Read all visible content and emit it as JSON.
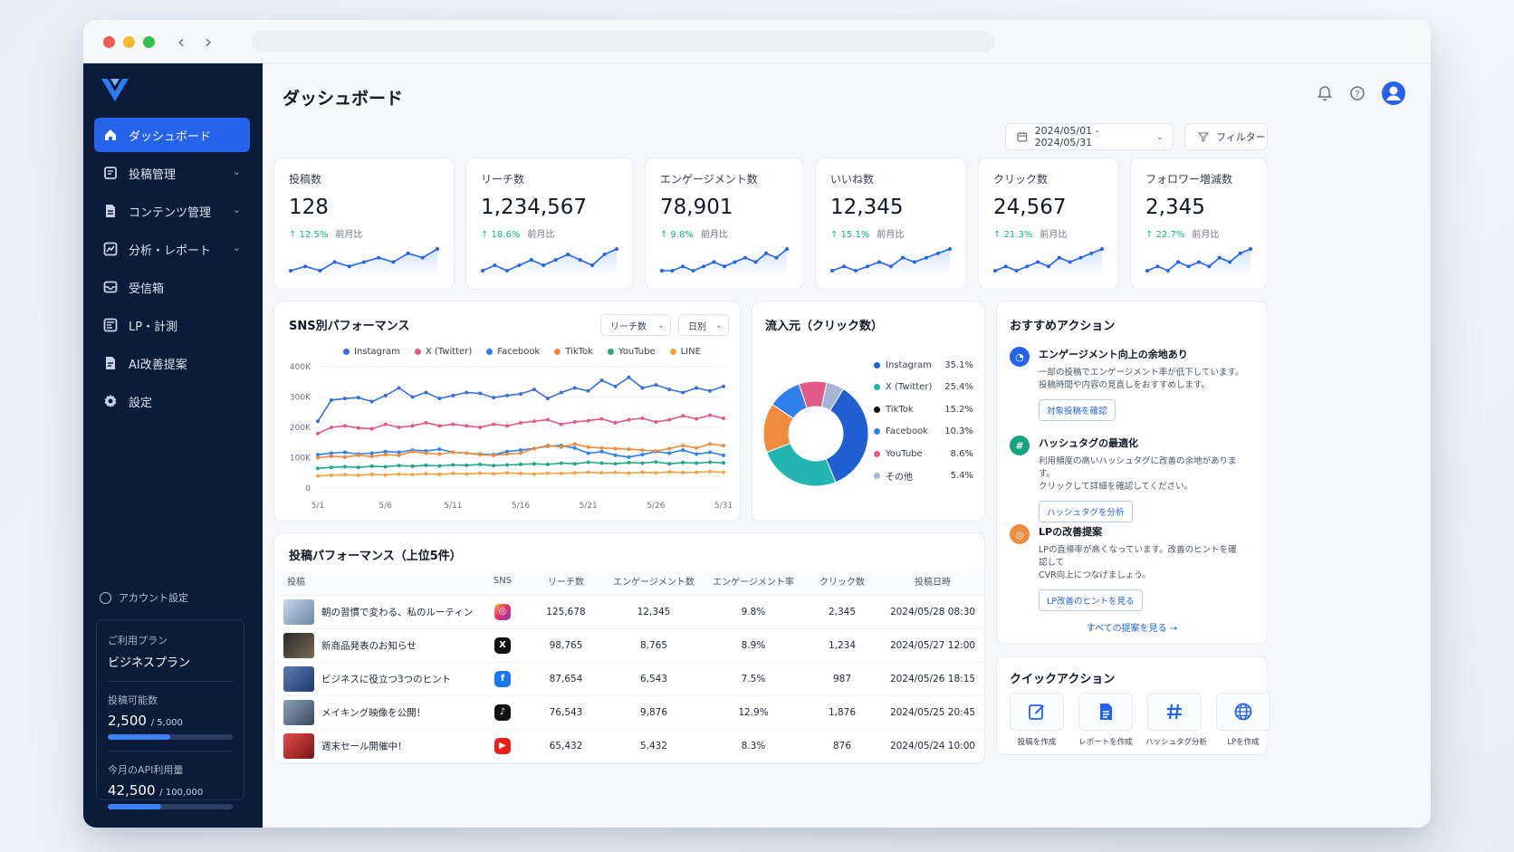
{
  "page": {
    "title": "ダッシュボード"
  },
  "sidebar": {
    "items": [
      {
        "label": "ダッシュボード"
      },
      {
        "label": "投稿管理"
      },
      {
        "label": "コンテンツ管理"
      },
      {
        "label": "分析・レポート"
      },
      {
        "label": "受信箱"
      },
      {
        "label": "LP・計測"
      },
      {
        "label": "AI改善提案"
      },
      {
        "label": "設定"
      }
    ],
    "account_label": "アカウント設定",
    "plan": {
      "plan_label": "ご利用プラン",
      "plan_name": "ビジネスプラン",
      "posts_label": "投稿可能数",
      "posts_used": "2,500",
      "posts_total": "/ 5,000",
      "posts_fraction": 0.5,
      "api_label": "今月のAPI利用量",
      "api_used": "42,500",
      "api_total": "/ 100,000",
      "api_fraction": 0.425
    }
  },
  "header": {
    "date_range": "2024/05/01 - 2024/05/31",
    "filter_label": "フィルター"
  },
  "kpis": [
    {
      "label": "投稿数",
      "value": "128",
      "delta": "↑ 12.5%",
      "compare": "前月比",
      "spark": [
        3,
        4,
        3,
        5,
        4,
        5,
        6,
        5,
        7,
        6,
        8
      ]
    },
    {
      "label": "リーチ数",
      "value": "1,234,567",
      "delta": "↑ 18.6%",
      "compare": "前月比",
      "spark": [
        3,
        4,
        3,
        4,
        5,
        4,
        5,
        6,
        5,
        4,
        6,
        7
      ]
    },
    {
      "label": "エンゲージメント数",
      "value": "78,901",
      "delta": "↑ 9.8%",
      "compare": "前月比",
      "spark": [
        3,
        3,
        4,
        3,
        4,
        5,
        4,
        5,
        6,
        5,
        7,
        6,
        8
      ]
    },
    {
      "label": "いいね数",
      "value": "12,345",
      "delta": "↑ 15.1%",
      "compare": "前月比",
      "spark": [
        3,
        4,
        3,
        4,
        5,
        4,
        6,
        5,
        6,
        7,
        8
      ]
    },
    {
      "label": "クリック数",
      "value": "24,567",
      "delta": "↑ 21.3%",
      "compare": "前月比",
      "spark": [
        3,
        4,
        3,
        4,
        5,
        4,
        6,
        5,
        6,
        7,
        8
      ]
    },
    {
      "label": "フォロワー増減数",
      "value": "2,345",
      "delta": "↑ 22.7%",
      "compare": "前月比",
      "spark": [
        3,
        4,
        3,
        5,
        4,
        5,
        4,
        6,
        5,
        7,
        8
      ]
    }
  ],
  "sns": {
    "title": "SNS別パフォーマンス",
    "metric_select": "リーチ数",
    "period_select": "日別",
    "chart_data": {
      "type": "line",
      "x": [
        "5/1",
        "5/2",
        "5/3",
        "5/4",
        "5/5",
        "5/6",
        "5/7",
        "5/8",
        "5/9",
        "5/10",
        "5/11",
        "5/12",
        "5/13",
        "5/14",
        "5/15",
        "5/16",
        "5/17",
        "5/18",
        "5/19",
        "5/20",
        "5/21",
        "5/22",
        "5/23",
        "5/24",
        "5/25",
        "5/26",
        "5/27",
        "5/28",
        "5/29",
        "5/30",
        "5/31"
      ],
      "x_ticks": [
        "5/1",
        "5/6",
        "5/11",
        "5/16",
        "5/21",
        "5/26",
        "5/31"
      ],
      "y_ticks": [
        "0",
        "100K",
        "200K",
        "300K",
        "400K"
      ],
      "ylim": [
        0,
        400000
      ],
      "series": [
        {
          "name": "Instagram",
          "color": "#3b6fd8",
          "values": [
            220000,
            290000,
            295000,
            298000,
            285000,
            305000,
            330000,
            300000,
            315000,
            295000,
            305000,
            315000,
            312000,
            298000,
            305000,
            310000,
            325000,
            295000,
            315000,
            330000,
            320000,
            355000,
            335000,
            365000,
            330000,
            340000,
            325000,
            315000,
            330000,
            320000,
            335000
          ]
        },
        {
          "name": "X (Twitter)",
          "color": "#e05a87",
          "values": [
            180000,
            200000,
            205000,
            198000,
            195000,
            210000,
            200000,
            205000,
            215000,
            205000,
            210000,
            205000,
            200000,
            210000,
            205000,
            215000,
            220000,
            225000,
            210000,
            218000,
            222000,
            228000,
            215000,
            225000,
            230000,
            218000,
            225000,
            238000,
            228000,
            240000,
            230000
          ]
        },
        {
          "name": "Facebook",
          "color": "#2f80ed",
          "values": [
            110000,
            115000,
            118000,
            112000,
            115000,
            120000,
            118000,
            125000,
            122000,
            128000,
            118000,
            115000,
            112000,
            110000,
            120000,
            125000,
            130000,
            138000,
            140000,
            132000,
            115000,
            120000,
            108000,
            102000,
            110000,
            120000,
            115000,
            125000,
            112000,
            118000,
            108000
          ]
        },
        {
          "name": "TikTok",
          "color": "#f08a3c",
          "values": [
            100000,
            105000,
            102000,
            108000,
            104000,
            110000,
            108000,
            120000,
            115000,
            112000,
            118000,
            115000,
            110000,
            108000,
            112000,
            115000,
            130000,
            140000,
            135000,
            145000,
            135000,
            132000,
            130000,
            128000,
            125000,
            122000,
            130000,
            140000,
            132000,
            145000,
            140000
          ]
        },
        {
          "name": "YouTube",
          "color": "#22a884",
          "values": [
            65000,
            68000,
            70000,
            68000,
            72000,
            70000,
            74000,
            72000,
            75000,
            73000,
            76000,
            75000,
            78000,
            74000,
            76000,
            78000,
            80000,
            78000,
            82000,
            80000,
            85000,
            82000,
            80000,
            84000,
            82000,
            86000,
            80000,
            84000,
            82000,
            85000,
            83000
          ]
        },
        {
          "name": "LINE",
          "color": "#f4a340",
          "values": [
            40000,
            42000,
            44000,
            42000,
            45000,
            43000,
            46000,
            44000,
            47000,
            45000,
            48000,
            46000,
            49000,
            47000,
            50000,
            48000,
            46000,
            49000,
            48000,
            50000,
            52000,
            50000,
            51000,
            49000,
            52000,
            50000,
            53000,
            51000,
            52000,
            54000,
            52000
          ]
        }
      ],
      "legend_position": "top",
      "grid": true
    }
  },
  "sources": {
    "title": "流入元（クリック数）",
    "chart_data": {
      "type": "pie",
      "labels": [
        "Instagram",
        "X (Twitter)",
        "TikTok",
        "Facebook",
        "YouTube",
        "その他"
      ],
      "pct_labels": [
        "35.1%",
        "25.4%",
        "15.2%",
        "10.3%",
        "8.6%",
        "5.4%"
      ],
      "values": [
        35.1,
        25.4,
        15.2,
        10.3,
        8.6,
        5.4
      ],
      "colors": [
        "#1f5fd1",
        "#22b5b0",
        "#f08a3c",
        "#2f80ed",
        "#e05a87",
        "#a8b4d6"
      ],
      "legend_colors": [
        "#1f5fd1",
        "#22b5b0",
        "#111111",
        "#2f80ed",
        "#e05a87",
        "#a8b4d6"
      ]
    }
  },
  "recommend": {
    "title": "おすすめアクション",
    "items": [
      {
        "title": "エンゲージメント向上の余地あり",
        "desc1": "一部の投稿でエンゲージメント率が低下しています。",
        "desc2": "投稿時間や内容の見直しをおすすめします。",
        "button": "対象投稿を確認",
        "color": "#2563eb"
      },
      {
        "title": "ハッシュタグの最適化",
        "desc1": "利用頻度の高いハッシュタグに改善の余地があります。",
        "desc2": "クリックして詳細を確認してください。",
        "button": "ハッシュタグを分析",
        "color": "#14a37f"
      },
      {
        "title": "LPの改善提案",
        "desc1": "LPの直帰率が高くなっています。改善のヒントを確認して",
        "desc2": "CVR向上につなげましょう。",
        "button": "LP改善のヒントを見る",
        "color": "#f08a3c"
      }
    ],
    "see_all": "すべての提案を見る →"
  },
  "quick": {
    "title": "クイックアクション",
    "items": [
      {
        "label": "投稿を作成",
        "icon": "edit-icon"
      },
      {
        "label": "レポートを作成",
        "icon": "report-icon"
      },
      {
        "label": "ハッシュタグ分析",
        "icon": "hashtag-icon"
      },
      {
        "label": "LPを作成",
        "icon": "globe-icon"
      }
    ]
  },
  "posts": {
    "title": "投稿パフォーマンス（上位5件）",
    "columns": [
      "投稿",
      "SNS",
      "リーチ数",
      "エンゲージメント数",
      "エンゲージメント率",
      "クリック数",
      "投稿日時"
    ],
    "rows": [
      {
        "title": "朝の習慣で変わる、私のルーティン",
        "sns": "Instagram",
        "reach": "125,678",
        "eng": "12,345",
        "rate": "9.8%",
        "clicks": "2,345",
        "date": "2024/05/28 08:30"
      },
      {
        "title": "新商品発表のお知らせ",
        "sns": "X",
        "reach": "98,765",
        "eng": "8,765",
        "rate": "8.9%",
        "clicks": "1,234",
        "date": "2024/05/27 12:00"
      },
      {
        "title": "ビジネスに役立つ3つのヒント",
        "sns": "Facebook",
        "reach": "87,654",
        "eng": "6,543",
        "rate": "7.5%",
        "clicks": "987",
        "date": "2024/05/26 18:15"
      },
      {
        "title": "メイキング映像を公開！",
        "sns": "TikTok",
        "reach": "76,543",
        "eng": "9,876",
        "rate": "12.9%",
        "clicks": "1,876",
        "date": "2024/05/25 20:45"
      },
      {
        "title": "週末セール開催中！",
        "sns": "YouTube",
        "reach": "65,432",
        "eng": "5,432",
        "rate": "8.3%",
        "clicks": "876",
        "date": "2024/05/24 10:00"
      }
    ]
  }
}
